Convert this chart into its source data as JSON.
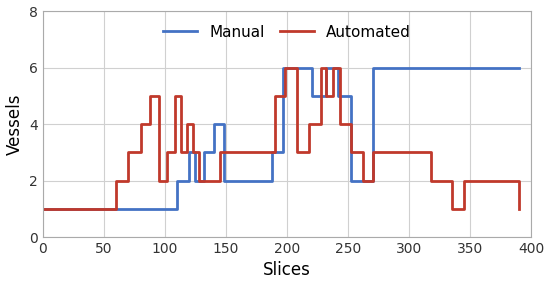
{
  "xlabel": "Slices",
  "ylabel": "Vessels",
  "xlim": [
    0,
    400
  ],
  "ylim": [
    0,
    8
  ],
  "xticks": [
    0,
    50,
    100,
    150,
    200,
    250,
    300,
    350,
    400
  ],
  "yticks": [
    0,
    2,
    4,
    6,
    8
  ],
  "manual_x": [
    0,
    70,
    70,
    110,
    110,
    120,
    120,
    125,
    125,
    132,
    132,
    140,
    140,
    148,
    148,
    188,
    188,
    197,
    197,
    220,
    220,
    232,
    232,
    242,
    242,
    252,
    252,
    270,
    270,
    390
  ],
  "manual_y": [
    1,
    1,
    1,
    1,
    2,
    2,
    3,
    3,
    2,
    2,
    3,
    3,
    4,
    4,
    2,
    2,
    3,
    3,
    6,
    6,
    5,
    5,
    6,
    6,
    5,
    5,
    2,
    2,
    6,
    6
  ],
  "automated_x": [
    0,
    60,
    60,
    70,
    70,
    80,
    80,
    88,
    88,
    95,
    95,
    102,
    102,
    108,
    108,
    113,
    113,
    118,
    118,
    123,
    123,
    128,
    128,
    145,
    145,
    175,
    175,
    190,
    190,
    198,
    198,
    208,
    208,
    218,
    218,
    228,
    228,
    232,
    232,
    238,
    238,
    243,
    243,
    252,
    252,
    262,
    262,
    270,
    270,
    318,
    318,
    335,
    335,
    345,
    345,
    390
  ],
  "automated_y": [
    1,
    1,
    2,
    2,
    3,
    3,
    4,
    4,
    5,
    5,
    2,
    2,
    3,
    3,
    5,
    5,
    3,
    3,
    4,
    4,
    3,
    3,
    2,
    2,
    3,
    3,
    3,
    3,
    5,
    5,
    6,
    6,
    3,
    3,
    4,
    4,
    6,
    6,
    5,
    5,
    6,
    6,
    4,
    4,
    3,
    3,
    2,
    2,
    3,
    3,
    2,
    2,
    1,
    1,
    2,
    1
  ],
  "manual_color": "#4472c4",
  "automated_color": "#c0392b",
  "linewidth": 2.0,
  "grid_color": "#d0d0d0",
  "background_color": "#ffffff",
  "fig_width": 5.5,
  "fig_height": 2.85,
  "legend_fontsize": 11,
  "axis_fontsize": 12
}
